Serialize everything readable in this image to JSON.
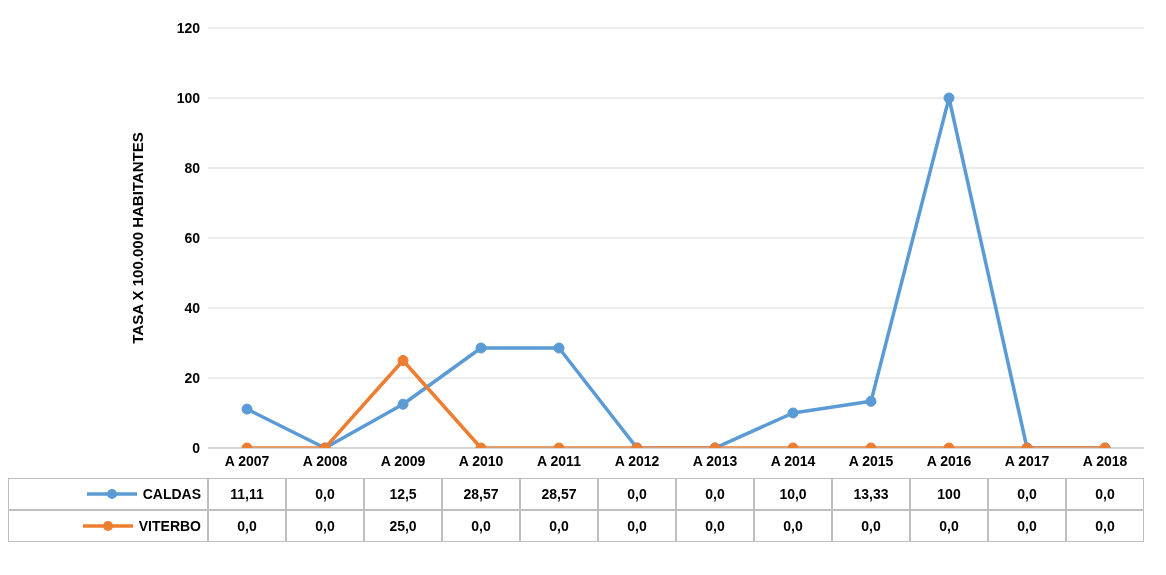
{
  "chart_data": {
    "type": "line",
    "ylabel": "TASA X 100.000 HABITANTES",
    "categories": [
      "A 2007",
      "A 2008",
      "A 2009",
      "A 2010",
      "A 2011",
      "A 2012",
      "A 2013",
      "A 2014",
      "A 2015",
      "A 2016",
      "A 2017",
      "A 2018"
    ],
    "series": [
      {
        "name": "CALDAS",
        "color": "#5b9bd5",
        "values": [
          11.11,
          0,
          12.5,
          28.57,
          28.57,
          0,
          0,
          10,
          13.33,
          100,
          0,
          0
        ],
        "value_labels": [
          "11,11",
          "0,0",
          "12,5",
          "28,57",
          "28,57",
          "0,0",
          "0,0",
          "10,0",
          "13,33",
          "100",
          "0,0",
          "0,0"
        ]
      },
      {
        "name": "VITERBO",
        "color": "#ed7d31",
        "values": [
          0,
          0,
          25,
          0,
          0,
          0,
          0,
          0,
          0,
          0,
          0,
          0
        ],
        "value_labels": [
          "0,0",
          "0,0",
          "25,0",
          "0,0",
          "0,0",
          "0,0",
          "0,0",
          "0,0",
          "0,0",
          "0,0",
          "0,0",
          "0,0"
        ]
      }
    ],
    "ylim": [
      0,
      120
    ],
    "yticks": [
      0,
      20,
      40,
      60,
      80,
      100,
      120
    ],
    "grid": "y",
    "marker": "circle",
    "legend": "bottom left"
  }
}
